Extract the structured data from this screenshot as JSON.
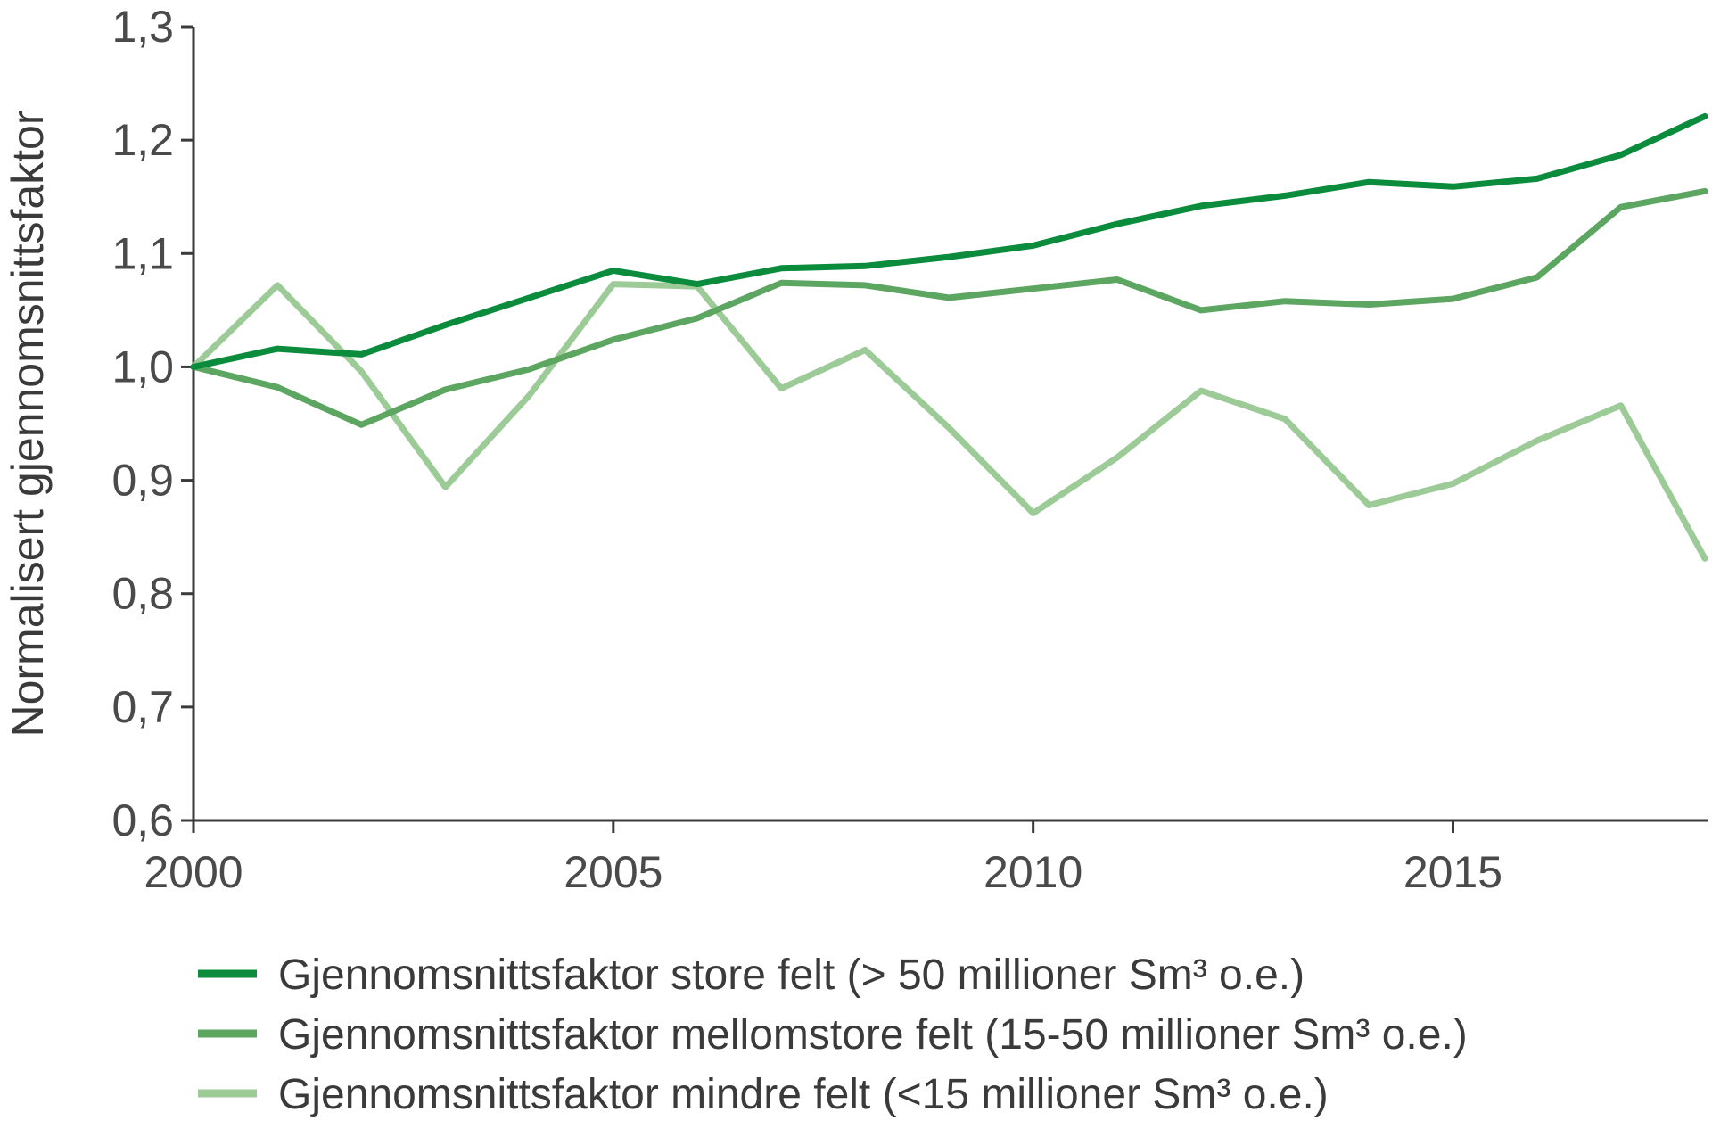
{
  "chart_data": {
    "type": "line",
    "title": "",
    "xlabel": "",
    "ylabel": "Normalisert gjennomsnittsfaktor",
    "x": [
      2000,
      2001,
      2002,
      2003,
      2004,
      2005,
      2006,
      2007,
      2008,
      2009,
      2010,
      2011,
      2012,
      2013,
      2014,
      2015,
      2016,
      2017,
      2018
    ],
    "xlim": [
      2000,
      2018
    ],
    "ylim": [
      0.6,
      1.3
    ],
    "x_ticks": [
      {
        "value": 2000,
        "label": "2000"
      },
      {
        "value": 2005,
        "label": "2005"
      },
      {
        "value": 2010,
        "label": "2010"
      },
      {
        "value": 2015,
        "label": "2015"
      }
    ],
    "y_ticks": [
      {
        "value": 1.3,
        "label": "1,3"
      },
      {
        "value": 1.2,
        "label": "1,2"
      },
      {
        "value": 1.1,
        "label": "1,1"
      },
      {
        "value": 1.0,
        "label": "1,0"
      },
      {
        "value": 0.9,
        "label": "0,9"
      },
      {
        "value": 0.8,
        "label": "0,8"
      },
      {
        "value": 0.7,
        "label": "0,7"
      },
      {
        "value": 0.6,
        "label": "0,6"
      }
    ],
    "grid": false,
    "legend_position": "bottom",
    "series": [
      {
        "name": "Gjennomsnittsfaktor store felt (> 50 millioner Sm³ o.e.)",
        "color": "#0a8c3c",
        "values": [
          1.0,
          1.016,
          1.011,
          1.037,
          1.061,
          1.085,
          1.073,
          1.087,
          1.089,
          1.097,
          1.107,
          1.126,
          1.142,
          1.151,
          1.163,
          1.159,
          1.166,
          1.187,
          1.221
        ]
      },
      {
        "name": "Gjennomsnittsfaktor mellomstore felt (15-50 millioner Sm³ o.e.)",
        "color": "#5ca661",
        "values": [
          1.0,
          0.982,
          0.949,
          0.98,
          0.998,
          1.024,
          1.043,
          1.074,
          1.072,
          1.061,
          1.069,
          1.077,
          1.05,
          1.058,
          1.055,
          1.06,
          1.079,
          1.141,
          1.155
        ]
      },
      {
        "name": "Gjennomsnittsfaktor mindre felt (<15 millioner Sm³ o.e.)",
        "color": "#9ccb98",
        "values": [
          1.0,
          1.072,
          0.996,
          0.894,
          0.975,
          1.073,
          1.071,
          0.981,
          1.015,
          0.946,
          0.871,
          0.92,
          0.979,
          0.954,
          0.878,
          0.897,
          0.935,
          0.966,
          0.831
        ]
      }
    ]
  }
}
